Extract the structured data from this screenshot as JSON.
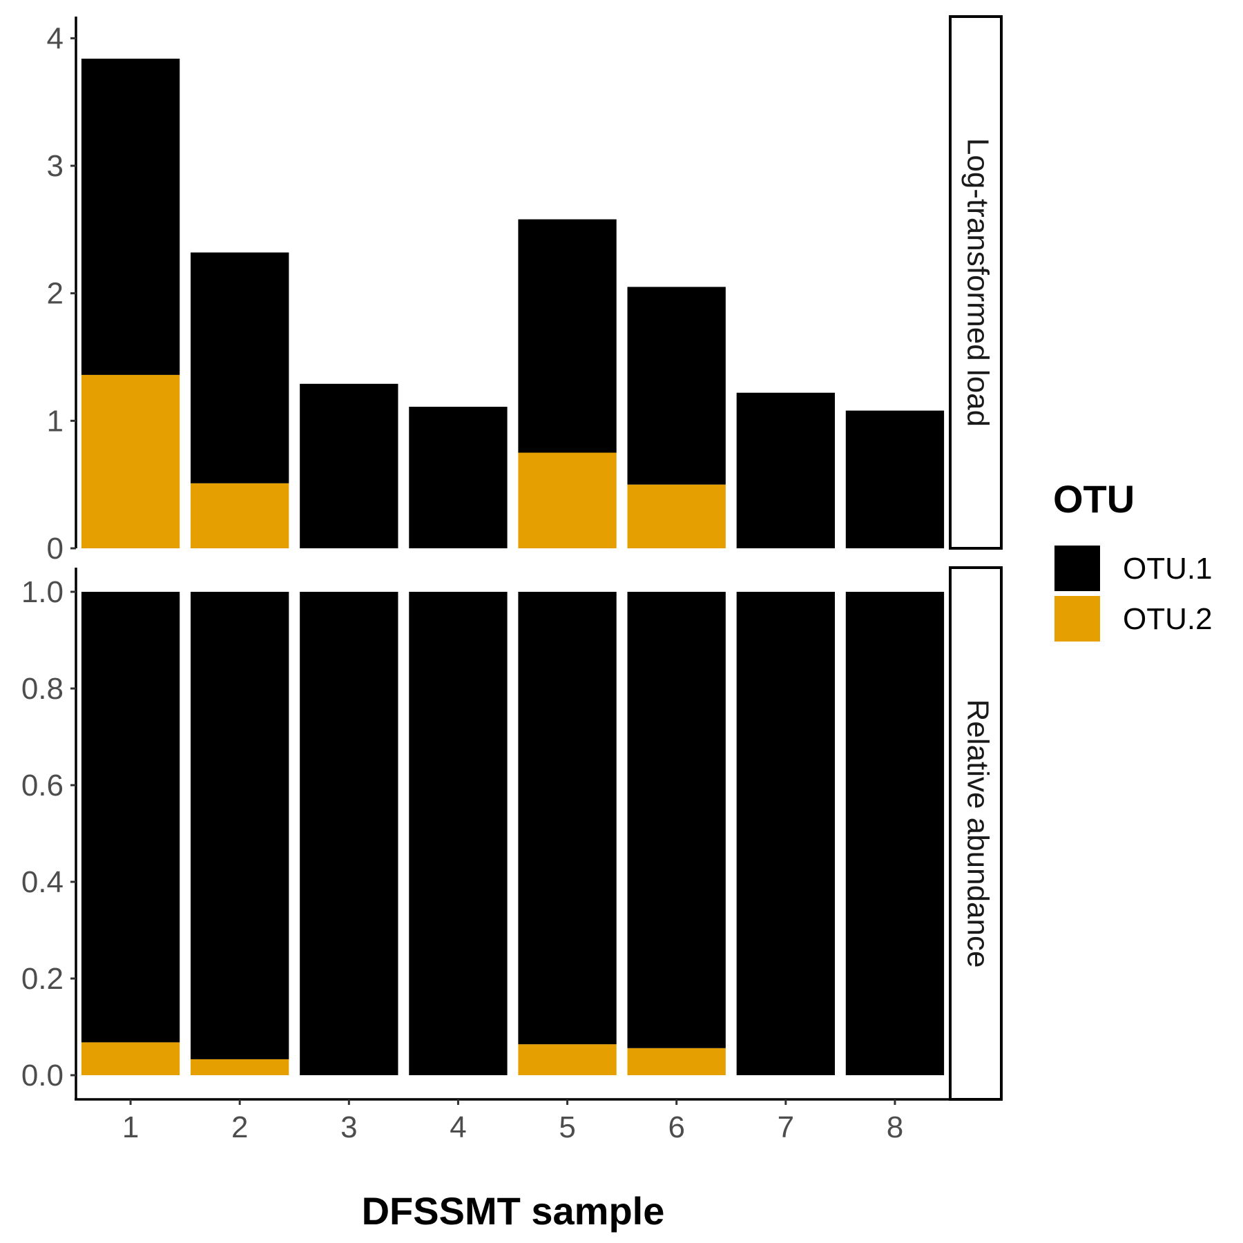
{
  "chart_data": {
    "type": "bar",
    "stacked": true,
    "xlabel": "DFSSMT sample",
    "categories": [
      "1",
      "2",
      "3",
      "4",
      "5",
      "6",
      "7",
      "8"
    ],
    "legend": {
      "title": "OTU",
      "position": "right",
      "items": [
        {
          "name": "OTU.1",
          "color": "#000000"
        },
        {
          "name": "OTU.2",
          "color": "#E69F00"
        }
      ]
    },
    "panels": [
      {
        "strip_label": "Log-transformed load",
        "ylim": [
          0,
          4.17
        ],
        "yticks": [
          0,
          1,
          2,
          3,
          4
        ],
        "ytick_labels": [
          "0",
          "1",
          "2",
          "3",
          "4"
        ],
        "series": [
          {
            "name": "OTU.1",
            "color": "#000000",
            "values": [
              2.48,
              1.81,
              1.29,
              1.11,
              1.83,
              1.55,
              1.22,
              1.08
            ]
          },
          {
            "name": "OTU.2",
            "color": "#E69F00",
            "values": [
              1.36,
              0.51,
              0,
              0,
              0.75,
              0.5,
              0,
              0
            ]
          }
        ]
      },
      {
        "strip_label": "Relative abundance",
        "ylim": [
          -0.05,
          1.05
        ],
        "yticks": [
          0,
          0.2,
          0.4,
          0.6,
          0.8,
          1.0
        ],
        "ytick_labels": [
          "0.0",
          "0.2",
          "0.4",
          "0.6",
          "0.8",
          "1.0"
        ],
        "series": [
          {
            "name": "OTU.1",
            "color": "#000000",
            "values": [
              0.932,
              0.967,
              1.0,
              1.0,
              0.936,
              0.944,
              1.0,
              1.0
            ]
          },
          {
            "name": "OTU.2",
            "color": "#E69F00",
            "values": [
              0.068,
              0.033,
              0,
              0,
              0.064,
              0.056,
              0,
              0
            ]
          }
        ]
      }
    ]
  }
}
